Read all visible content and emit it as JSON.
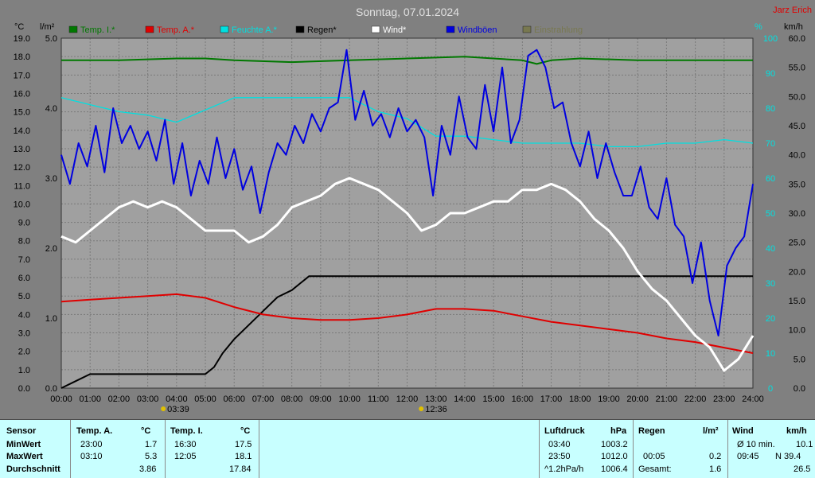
{
  "chart_data": {
    "type": "line",
    "title": "Sonntag, 07.01.2024",
    "station": "Jarz Erich",
    "left_axis1_unit": "°C",
    "left_axis2_unit": "l/m²",
    "right_axis1_unit": "%",
    "right_axis2_unit": "km/h",
    "temp_ticks": [
      "0.0",
      "1.0",
      "2.0",
      "3.0",
      "4.0",
      "5.0",
      "6.0",
      "7.0",
      "8.0",
      "9.0",
      "10.0",
      "11.0",
      "12.0",
      "13.0",
      "14.0",
      "15.0",
      "16.0",
      "17.0",
      "18.0",
      "19.0"
    ],
    "rain_ticks": [
      "0.0",
      "1.0",
      "2.0",
      "3.0",
      "4.0",
      "5.0"
    ],
    "hum_ticks": [
      "0",
      "10",
      "20",
      "30",
      "40",
      "50",
      "60",
      "70",
      "80",
      "90",
      "100"
    ],
    "wind_ticks": [
      "0.0",
      "5.0",
      "10.0",
      "15.0",
      "20.0",
      "25.0",
      "30.0",
      "35.0",
      "40.0",
      "45.0",
      "50.0",
      "55.0",
      "60.0"
    ],
    "x_ticks": [
      "00:00",
      "01:00",
      "02:00",
      "03:00",
      "04:00",
      "05:00",
      "06:00",
      "07:00",
      "08:00",
      "09:00",
      "10:00",
      "11:00",
      "12:00",
      "13:00",
      "14:00",
      "15:00",
      "16:00",
      "17:00",
      "18:00",
      "19:00",
      "20:00",
      "21:00",
      "22:00",
      "23:00",
      "24:00"
    ],
    "ylim_temp": [
      0,
      19
    ],
    "ylim_rain": [
      0,
      5
    ],
    "ylim_hum": [
      0,
      100
    ],
    "ylim_wind": [
      0,
      60
    ],
    "grid": true,
    "legend": [
      {
        "name": "Temp. I.*",
        "color": "#007800"
      },
      {
        "name": "Temp. A.*",
        "color": "#e00000"
      },
      {
        "name": "Feuchte A.*",
        "color": "#00e0e0"
      },
      {
        "name": "Regen*",
        "color": "#000000"
      },
      {
        "name": "Wind*",
        "color": "#ffffff"
      },
      {
        "name": "Windböen",
        "color": "#0000e0"
      },
      {
        "name": "Einstrahlung",
        "color": "#787850"
      }
    ],
    "sun_markers": [
      {
        "time": "03:39"
      },
      {
        "time": "12:36"
      }
    ],
    "series": [
      {
        "name": "Temp. I.*",
        "axis": "temp",
        "x": [
          0,
          2,
          4,
          5,
          6,
          8,
          10,
          12,
          14,
          16,
          16.5,
          17,
          18,
          20,
          22,
          24
        ],
        "values": [
          17.8,
          17.8,
          17.9,
          17.9,
          17.8,
          17.7,
          17.8,
          17.9,
          18.0,
          17.8,
          17.6,
          17.8,
          17.9,
          17.8,
          17.8,
          17.8
        ]
      },
      {
        "name": "Temp. A.*",
        "axis": "temp",
        "x": [
          0,
          1,
          2,
          3,
          4,
          5,
          6,
          7,
          8,
          9,
          10,
          11,
          12,
          13,
          14,
          15,
          16,
          17,
          18,
          19,
          20,
          21,
          22,
          23,
          24
        ],
        "values": [
          4.7,
          4.8,
          4.9,
          5.0,
          5.1,
          4.9,
          4.4,
          4.0,
          3.8,
          3.7,
          3.7,
          3.8,
          4.0,
          4.3,
          4.3,
          4.2,
          3.9,
          3.6,
          3.4,
          3.2,
          3.0,
          2.7,
          2.5,
          2.2,
          1.9
        ]
      },
      {
        "name": "Feuchte A.*",
        "axis": "hum",
        "x": [
          0,
          1,
          2,
          3,
          4,
          6,
          7,
          8,
          9,
          10,
          11,
          12,
          13,
          14,
          15,
          16,
          17,
          18,
          19,
          20,
          21,
          22,
          23,
          24
        ],
        "values": [
          83,
          81,
          79,
          78,
          76,
          83,
          83,
          83,
          83,
          83,
          79,
          77,
          72,
          72,
          71,
          70,
          70,
          70,
          69,
          69,
          70,
          70,
          71,
          70
        ]
      },
      {
        "name": "Regen*",
        "axis": "rain",
        "x": [
          0,
          0.5,
          1,
          2,
          3,
          4,
          5,
          5.3,
          5.6,
          6,
          6.5,
          7,
          7.5,
          8,
          8.3,
          8.6,
          9,
          9.5,
          10,
          12,
          16,
          20,
          24
        ],
        "values": [
          0.0,
          0.1,
          0.2,
          0.2,
          0.2,
          0.2,
          0.2,
          0.3,
          0.5,
          0.7,
          0.9,
          1.1,
          1.3,
          1.4,
          1.5,
          1.6,
          1.6,
          1.6,
          1.6,
          1.6,
          1.6,
          1.6,
          1.6
        ]
      },
      {
        "name": "Wind*",
        "axis": "wind",
        "x": [
          0,
          0.5,
          1,
          1.5,
          2,
          2.5,
          3,
          3.5,
          4,
          4.5,
          5,
          5.5,
          6,
          6.5,
          7,
          7.5,
          8,
          8.5,
          9,
          9.5,
          10,
          10.5,
          11,
          11.5,
          12,
          12.5,
          13,
          13.5,
          14,
          14.5,
          15,
          15.5,
          16,
          16.5,
          17,
          17.5,
          18,
          18.5,
          19,
          19.5,
          20,
          20.5,
          21,
          21.5,
          22,
          22.5,
          23,
          23.5,
          24
        ],
        "values": [
          26,
          25,
          27,
          29,
          31,
          32,
          31,
          32,
          31,
          29,
          27,
          27,
          27,
          25,
          26,
          28,
          31,
          32,
          33,
          35,
          36,
          35,
          34,
          32,
          30,
          27,
          28,
          30,
          30,
          31,
          32,
          32,
          34,
          34,
          35,
          34,
          32,
          29,
          27,
          24,
          20,
          17,
          15,
          12,
          9,
          7,
          3,
          5,
          9
        ]
      },
      {
        "name": "Windböen",
        "axis": "wind",
        "x": [
          0,
          0.3,
          0.6,
          0.9,
          1.2,
          1.5,
          1.8,
          2.1,
          2.4,
          2.7,
          3,
          3.3,
          3.6,
          3.9,
          4.2,
          4.5,
          4.8,
          5.1,
          5.4,
          5.7,
          6,
          6.3,
          6.6,
          6.9,
          7.2,
          7.5,
          7.8,
          8.1,
          8.4,
          8.7,
          9,
          9.3,
          9.6,
          9.9,
          10.2,
          10.5,
          10.8,
          11.1,
          11.4,
          11.7,
          12,
          12.3,
          12.6,
          12.9,
          13.2,
          13.5,
          13.8,
          14.1,
          14.4,
          14.7,
          15,
          15.3,
          15.6,
          15.9,
          16.2,
          16.5,
          16.8,
          17.1,
          17.4,
          17.7,
          18,
          18.3,
          18.6,
          18.9,
          19.2,
          19.5,
          19.8,
          20.1,
          20.4,
          20.7,
          21,
          21.3,
          21.6,
          21.9,
          22.2,
          22.5,
          22.8,
          23.1,
          23.4,
          23.7,
          24
        ],
        "values": [
          40,
          35,
          42,
          38,
          45,
          37,
          48,
          42,
          45,
          41,
          44,
          39,
          46,
          35,
          42,
          33,
          39,
          35,
          43,
          36,
          41,
          34,
          38,
          30,
          37,
          42,
          40,
          45,
          42,
          47,
          44,
          48,
          49,
          58,
          46,
          51,
          45,
          47,
          43,
          48,
          44,
          46,
          43,
          33,
          45,
          40,
          50,
          43,
          41,
          52,
          44,
          55,
          42,
          46,
          57,
          58,
          55,
          48,
          49,
          42,
          38,
          44,
          36,
          42,
          37,
          33,
          33,
          38,
          31,
          29,
          36,
          28,
          26,
          18,
          25,
          15,
          9,
          21,
          24,
          26,
          35
        ]
      }
    ]
  },
  "table": {
    "sensor_label": "Sensor",
    "min_label": "MinWert",
    "max_label": "MaxWert",
    "avg_label": "Durchschnitt",
    "temp_a": {
      "title": "Temp. A.",
      "unit": "°C",
      "min_time": "23:00",
      "min_val": "1.7",
      "max_time": "03:10",
      "max_val": "5.3",
      "avg_val": "3.86"
    },
    "temp_i": {
      "title": "Temp. I.",
      "unit": "°C",
      "min_time": "16:30",
      "min_val": "17.5",
      "max_time": "12:05",
      "max_val": "18.1",
      "avg_val": "17.84"
    },
    "pressure": {
      "title": "Luftdruck",
      "unit": "hPa",
      "min_time": "03:40",
      "min_val": "1003.2",
      "max_time": "23:50",
      "max_val": "1012.0",
      "trend_label": "^1.2hPa/h",
      "avg_val": "1006.4"
    },
    "rain": {
      "title": "Regen",
      "unit": "l/m²",
      "max_time": "00:05",
      "max_val": "0.2",
      "total_label": "Gesamt:",
      "total_val": "1.6"
    },
    "wind": {
      "title": "Wind",
      "unit": "km/h",
      "avg10_label": "Ø 10 min.",
      "avg10_val": "10.1",
      "max_time": "09:45",
      "max_val": "N 39.4",
      "avg_val": "26.5"
    }
  }
}
